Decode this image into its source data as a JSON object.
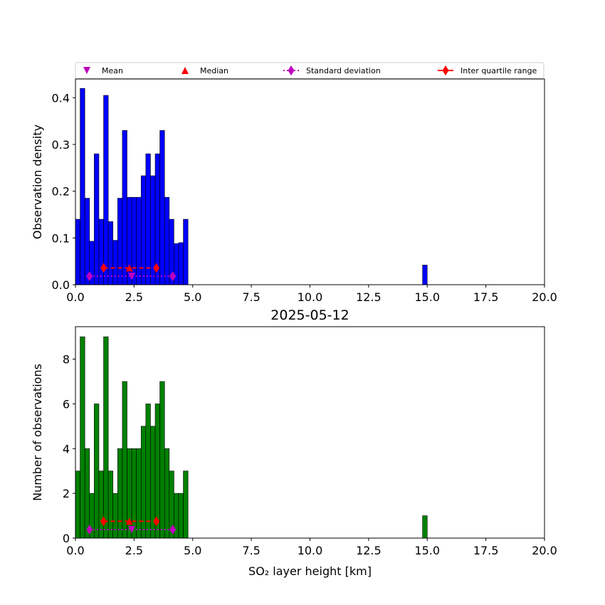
{
  "chart_data": [
    {
      "type": "bar",
      "panel": "density",
      "color": "#0000ff",
      "xlabel": "",
      "ylabel": "Observation density",
      "xlim": [
        0,
        20
      ],
      "ylim": [
        0,
        0.44
      ],
      "xticks": [
        "0.0",
        "2.5",
        "5.0",
        "7.5",
        "10.0",
        "12.5",
        "15.0",
        "17.5",
        "20.0"
      ],
      "yticks": [
        "0.0",
        "0.1",
        "0.2",
        "0.3",
        "0.4"
      ],
      "bin_width": 0.2,
      "x": [
        0.1,
        0.3,
        0.5,
        0.7,
        0.9,
        1.1,
        1.3,
        1.5,
        1.7,
        1.9,
        2.1,
        2.3,
        2.5,
        2.7,
        2.9,
        3.1,
        3.3,
        3.5,
        3.7,
        3.9,
        4.1,
        4.3,
        4.5,
        4.7,
        14.9
      ],
      "values": [
        0.14,
        0.42,
        0.185,
        0.093,
        0.28,
        0.14,
        0.405,
        0.135,
        0.095,
        0.185,
        0.33,
        0.187,
        0.187,
        0.187,
        0.233,
        0.28,
        0.233,
        0.28,
        0.33,
        0.187,
        0.14,
        0.088,
        0.09,
        0.14,
        0.042
      ],
      "markers": {
        "mean": {
          "x": 2.4,
          "y": 0.02
        },
        "median": {
          "x": 2.3,
          "y": 0.036
        },
        "std_range": [
          0.6,
          4.15
        ],
        "std_y": 0.018,
        "iqr_range": [
          1.2,
          3.45
        ],
        "iqr_y": 0.036
      }
    },
    {
      "type": "bar",
      "panel": "counts",
      "color": "#008000",
      "title": "2025-05-12",
      "xlabel": "SO₂ layer height [km]",
      "ylabel": "Number of observations",
      "xlim": [
        0,
        20
      ],
      "ylim": [
        0,
        9.45
      ],
      "xticks": [
        "0.0",
        "2.5",
        "5.0",
        "7.5",
        "10.0",
        "12.5",
        "15.0",
        "17.5",
        "20.0"
      ],
      "yticks": [
        "0",
        "2",
        "4",
        "6",
        "8"
      ],
      "bin_width": 0.2,
      "x": [
        0.1,
        0.3,
        0.5,
        0.7,
        0.9,
        1.1,
        1.3,
        1.5,
        1.7,
        1.9,
        2.1,
        2.3,
        2.5,
        2.7,
        2.9,
        3.1,
        3.3,
        3.5,
        3.7,
        3.9,
        4.1,
        4.3,
        4.5,
        4.7,
        14.9
      ],
      "values": [
        3,
        9,
        4,
        2,
        6,
        3,
        9,
        3,
        2,
        4,
        7,
        4,
        4,
        4,
        5,
        6,
        5,
        6,
        7,
        4,
        3,
        2,
        2,
        3,
        1
      ],
      "markers": {
        "mean": {
          "x": 2.4,
          "y": 0.4
        },
        "median": {
          "x": 2.3,
          "y": 0.7
        },
        "std_range": [
          0.6,
          4.15
        ],
        "std_y": 0.38,
        "iqr_range": [
          1.2,
          3.45
        ],
        "iqr_y": 0.75
      }
    }
  ],
  "legend": {
    "placement": "top",
    "entries": [
      {
        "label": "Mean",
        "marker": "triangle-down",
        "color": "#bf00bf"
      },
      {
        "label": "Median",
        "marker": "triangle-up",
        "color": "#ff0000"
      },
      {
        "label": "Standard deviation",
        "marker": "diamond-dotted",
        "color": "#bf00bf"
      },
      {
        "label": "Inter quartile range",
        "marker": "diamond-solid",
        "color": "#ff0000"
      }
    ]
  }
}
